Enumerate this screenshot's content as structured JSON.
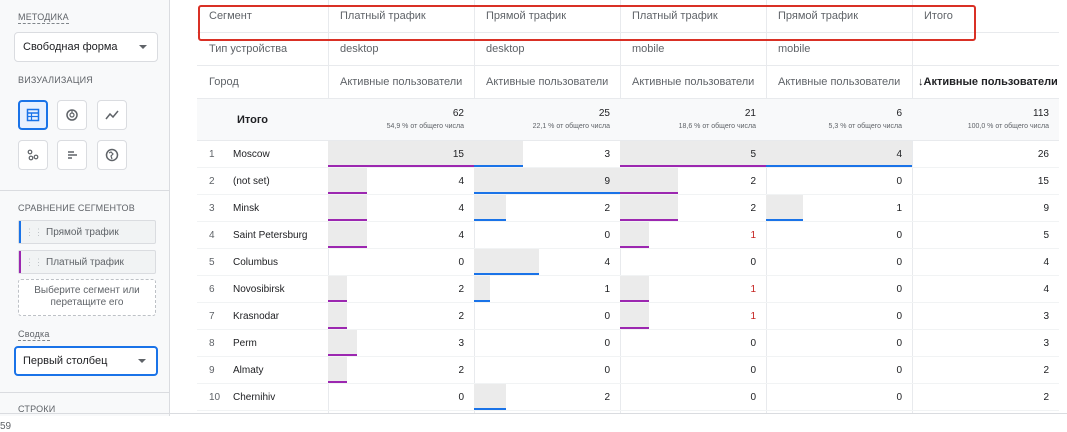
{
  "sidebar": {
    "technique_label": "МЕТОДИКА",
    "technique_value": "Свободная форма",
    "viz_label": "ВИЗУАЛИЗАЦИЯ",
    "viz_icons": [
      "table-icon",
      "donut-chart-icon",
      "line-chart-icon",
      "scatter-icon",
      "bar-chart-icon",
      "globe-icon"
    ],
    "segments_label": "СРАВНЕНИЕ СЕГМЕНТОВ",
    "segment_chips": [
      {
        "label": "Прямой трафик",
        "color": "#1a73e8"
      },
      {
        "label": "Платный трафик",
        "color": "#9c27b0"
      }
    ],
    "drop_hint": [
      "Выберите сегмент или",
      "перетащите его"
    ],
    "pivot_label": "Сводка",
    "pivot_value": "Первый столбец",
    "rows_label": "СТРОКИ"
  },
  "table": {
    "segment_row": {
      "label": "Сегмент",
      "values": [
        "Платный трафик",
        "Прямой трафик",
        "Платный трафик",
        "Прямой трафик",
        "Итого"
      ]
    },
    "device_row": {
      "label": "Тип устройства",
      "values": [
        "desktop",
        "desktop",
        "mobile",
        "mobile",
        ""
      ]
    },
    "city_row": {
      "label": "Город",
      "values": [
        "Активные пользователи",
        "Активные пользователи",
        "Активные пользователи",
        "Активные пользователи",
        "↓Активные пользователи"
      ]
    },
    "totals": {
      "label": "Итого",
      "values": [
        "62",
        "25",
        "21",
        "6",
        "113"
      ],
      "pcts": [
        "54,9 % от общего числа",
        "22,1 % от общего числа",
        "18,6 % от общего числа",
        "5,3 % от общего числа",
        "100,0 % от общего числа"
      ]
    },
    "col_colors": [
      "#9c27b0",
      "#1a73e8",
      "#9c27b0",
      "#1a73e8"
    ],
    "rows": [
      {
        "rank": "1",
        "city": "Moscow",
        "values": [
          "15",
          "3",
          "5",
          "4",
          "26"
        ]
      },
      {
        "rank": "2",
        "city": "(not set)",
        "values": [
          "4",
          "9",
          "2",
          "0",
          "15"
        ]
      },
      {
        "rank": "3",
        "city": "Minsk",
        "values": [
          "4",
          "2",
          "2",
          "1",
          "9"
        ]
      },
      {
        "rank": "4",
        "city": "Saint Petersburg",
        "values": [
          "4",
          "0",
          "1",
          "0",
          "5"
        ]
      },
      {
        "rank": "5",
        "city": "Columbus",
        "values": [
          "0",
          "4",
          "0",
          "0",
          "4"
        ]
      },
      {
        "rank": "6",
        "city": "Novosibirsk",
        "values": [
          "2",
          "1",
          "1",
          "0",
          "4"
        ]
      },
      {
        "rank": "7",
        "city": "Krasnodar",
        "values": [
          "2",
          "0",
          "1",
          "0",
          "3"
        ]
      },
      {
        "rank": "8",
        "city": "Perm",
        "values": [
          "3",
          "0",
          "0",
          "0",
          "3"
        ]
      },
      {
        "rank": "9",
        "city": "Almaty",
        "values": [
          "2",
          "0",
          "0",
          "0",
          "2"
        ]
      },
      {
        "rank": "10",
        "city": "Chernihiv",
        "values": [
          "0",
          "2",
          "0",
          "0",
          "2"
        ]
      }
    ]
  },
  "footer_note": "59"
}
